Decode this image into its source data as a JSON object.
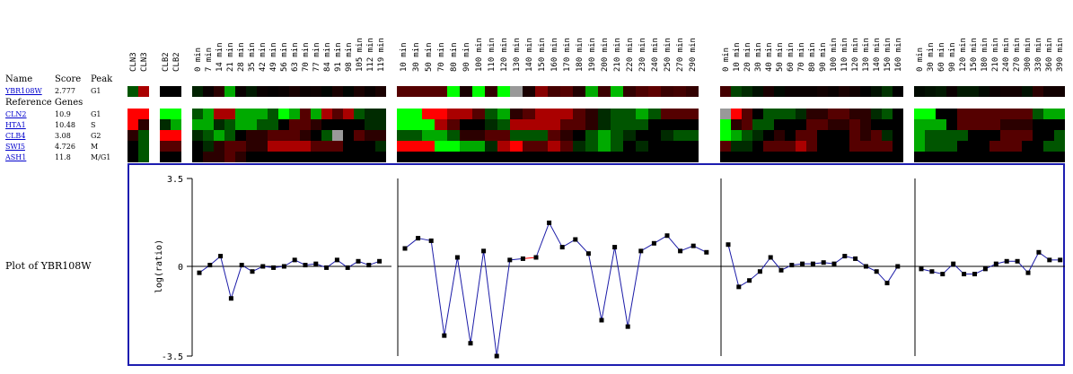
{
  "header": {
    "name": "Name",
    "score": "Score",
    "peak": "Peak",
    "reference_genes": "Reference Genes"
  },
  "query_gene": {
    "name": "YBR108W",
    "score": "2.777",
    "peak": "G1"
  },
  "reference_genes": [
    {
      "name": "CLN2",
      "score": "10.9",
      "peak": "G1"
    },
    {
      "name": "HTA1",
      "score": "10.48",
      "peak": "S"
    },
    {
      "name": "CLB4",
      "score": "3.08",
      "peak": "G2"
    },
    {
      "name": "SWI5",
      "score": "4.726",
      "peak": "M"
    },
    {
      "name": "ASH1",
      "score": "11.8",
      "peak": "M/G1"
    }
  ],
  "plot_title": "Plot of YBR108W",
  "colors": {
    "up": "#ff0000",
    "down": "#00ff00",
    "mid": "#000000",
    "missing": "#999999",
    "frame": "#1d1db0",
    "line": "#1c1ca8"
  },
  "experiments": [
    {
      "group": "cln",
      "columns": [
        "CLN3",
        "CLN3"
      ]
    },
    {
      "group": "clb",
      "columns": [
        "CLB2",
        "CLB2"
      ]
    },
    {
      "group": "alpha",
      "columns": [
        "0 min",
        "7 min",
        "14 min",
        "21 min",
        "28 min",
        "35 min",
        "42 min",
        "49 min",
        "56 min",
        "63 min",
        "70 min",
        "77 min",
        "84 min",
        "91 min",
        "98 min",
        "105 min",
        "112 min",
        "119 min"
      ]
    },
    {
      "group": "cdc15",
      "columns": [
        "10 min",
        "30 min",
        "50 min",
        "70 min",
        "80 min",
        "90 min",
        "100 min",
        "110 min",
        "120 min",
        "130 min",
        "140 min",
        "150 min",
        "160 min",
        "170 min",
        "180 min",
        "190 min",
        "200 min",
        "210 min",
        "220 min",
        "230 min",
        "240 min",
        "250 min",
        "270 min",
        "290 min"
      ]
    },
    {
      "group": "cdc28",
      "columns": [
        "0 min",
        "10 min",
        "20 min",
        "30 min",
        "40 min",
        "50 min",
        "60 min",
        "70 min",
        "80 min",
        "90 min",
        "100 min",
        "110 min",
        "120 min",
        "130 min",
        "140 min",
        "150 min",
        "160 min"
      ]
    },
    {
      "group": "elutr",
      "columns": [
        "0 min",
        "30 min",
        "60 min",
        "90 min",
        "120 min",
        "150 min",
        "180 min",
        "210 min",
        "240 min",
        "270 min",
        "300 min",
        "330 min",
        "360 min",
        "390 min"
      ]
    }
  ],
  "heatmap_rows": {
    "YBR108W": {
      "cln": [
        -1,
        2
      ],
      "clb": [
        0,
        0
      ],
      "alpha": [
        -0.4,
        0.1,
        0.5,
        -2,
        0.1,
        -0.3,
        0.1,
        0.05,
        0.1,
        0.3,
        0.1,
        0.15,
        -0.05,
        0.3,
        -0.05,
        0.3,
        0.1,
        0.3
      ],
      "cdc15": [
        1,
        1,
        1,
        1,
        -3,
        0.3,
        -3,
        0.6,
        -3.4,
        "NA",
        0.3,
        1.6,
        0.8,
        1,
        0.4,
        -2,
        0.7,
        -2.2,
        0.6,
        0.9,
        1.1,
        0.7,
        0.8,
        0.6
      ],
      "cdc28": [
        0.8,
        -0.8,
        -0.5,
        -0.2,
        0.3,
        -0.1,
        0.1,
        0.1,
        0.1,
        0.2,
        0.1,
        0.3,
        0.2,
        0,
        -0.2,
        -0.6,
        0
      ],
      "elutr": [
        -0.1,
        -0.2,
        -0.3,
        0.1,
        -0.3,
        -0.3,
        -0.1,
        0.1,
        0.2,
        0.2,
        -0.2,
        0.5,
        0.2,
        0.2
      ]
    },
    "CLN2": {
      "cln": [
        3,
        3
      ],
      "clb": [
        -3,
        -3
      ],
      "alpha": [
        -1,
        -2,
        2,
        2,
        -2,
        -2,
        -2,
        -1,
        -3,
        -2,
        1,
        -2,
        2,
        1,
        2,
        -1,
        -0.5,
        -0.5
      ],
      "cdc15": [
        -3,
        -3,
        3,
        3,
        2,
        2,
        1,
        -1,
        -2,
        0.5,
        1,
        2,
        2,
        2,
        1,
        0.5,
        -0.5,
        -1,
        -1,
        -2,
        -1,
        1,
        1,
        1
      ],
      "cdc28": [
        "NA",
        3,
        1,
        0,
        -1,
        -1,
        -1,
        -0.5,
        0.5,
        0.5,
        1,
        1,
        0.5,
        0.5,
        -0.5,
        -1,
        0
      ],
      "elutr": [
        -3,
        -3,
        0,
        0,
        1,
        1,
        1,
        1,
        1,
        1,
        1,
        -1,
        -2,
        -2
      ]
    },
    "HTA1": {
      "cln": [
        3,
        0.5
      ],
      "clb": [
        -0.5,
        -2
      ],
      "alpha": [
        -2,
        -2,
        -0.5,
        -1,
        -2,
        -2,
        -1,
        -1,
        0,
        1,
        1,
        0.5,
        0,
        0,
        0,
        0,
        -0.5,
        -0.5
      ],
      "cdc15": [
        -3,
        -3,
        -3,
        2,
        1,
        0,
        0,
        -0.5,
        -1,
        2,
        2,
        2,
        2,
        1,
        1,
        0.5,
        -0.5,
        -1,
        -1,
        -1,
        0,
        0,
        0,
        0
      ],
      "cdc28": [
        -3,
        0.5,
        1,
        -1,
        -1,
        0,
        0,
        0,
        1,
        1,
        0.5,
        0.5,
        1,
        0.5,
        0,
        0,
        0
      ],
      "elutr": [
        -2,
        -2,
        -2,
        0,
        1,
        1,
        1,
        1,
        0.5,
        0.5,
        0.5,
        0,
        0,
        0
      ]
    },
    "CLB4": {
      "cln": [
        0.5,
        -1
      ],
      "clb": [
        3,
        3
      ],
      "alpha": [
        -0.5,
        -1,
        -2,
        -1,
        0,
        0.5,
        0.5,
        1,
        1,
        1,
        0.5,
        0,
        -1,
        "NA",
        0,
        1,
        0.5,
        0.5
      ],
      "cdc15": [
        -1,
        -1,
        -2,
        -2,
        -1,
        0.5,
        0.5,
        1,
        1,
        -1,
        -1,
        -1,
        1,
        0.5,
        0,
        -1,
        -2,
        -1,
        -0.5,
        0,
        0,
        -0.5,
        -1,
        -1
      ],
      "cdc28": [
        -3,
        -2,
        -1,
        -0.5,
        0,
        0.5,
        0,
        1,
        1,
        0,
        0,
        0,
        1,
        0.5,
        1,
        -0.5,
        0
      ],
      "elutr": [
        -2,
        -1,
        -1,
        -1,
        -1,
        0,
        0,
        0,
        1,
        1,
        1,
        0,
        0,
        -1
      ]
    },
    "SWI5": {
      "cln": [
        0,
        -1
      ],
      "clb": [
        1,
        1
      ],
      "alpha": [
        0,
        -0.5,
        0.5,
        1,
        1,
        0.5,
        0.5,
        2,
        2,
        2,
        2,
        1,
        1,
        1,
        0,
        0,
        0,
        -0.5
      ],
      "cdc15": [
        3,
        3,
        3,
        -3,
        -3,
        -2,
        -2,
        -0.5,
        2,
        3,
        1,
        1,
        2,
        1,
        -0.5,
        -1,
        -2,
        -1,
        0,
        -0.5,
        0,
        0,
        0,
        0
      ],
      "cdc28": [
        1,
        -0.5,
        -0.5,
        0,
        1,
        1,
        1,
        2,
        1,
        0,
        0,
        0,
        1,
        1,
        1,
        1,
        0
      ],
      "elutr": [
        -2,
        -1,
        -1,
        -1,
        0,
        0,
        0,
        1,
        1,
        1,
        0,
        0,
        -1,
        -1
      ]
    },
    "ASH1": {
      "cln": [
        0,
        -1
      ],
      "clb": [
        0,
        0
      ],
      "alpha": [
        0,
        0.5,
        0.5,
        1,
        0.5,
        0,
        0,
        0,
        0,
        0,
        0,
        0,
        0,
        0,
        0,
        0,
        0,
        0
      ],
      "cdc15": [
        0,
        0,
        0,
        0,
        0,
        0,
        0,
        0,
        0,
        0,
        0,
        0,
        0,
        0,
        0,
        0,
        0,
        0,
        0,
        0,
        0,
        0,
        0,
        0
      ],
      "cdc28": [
        0,
        0,
        0,
        0,
        0,
        0,
        0,
        0,
        0,
        0,
        0,
        0,
        0,
        0,
        0,
        0,
        0
      ],
      "elutr": [
        0,
        0,
        0,
        0,
        0,
        0,
        0,
        0,
        0,
        0,
        0,
        0,
        0,
        0
      ]
    }
  },
  "chart_data": {
    "type": "line",
    "ylabel": "log(ratio)",
    "ylim": [
      -3.5,
      3.5
    ],
    "yticks": [
      "3.5",
      "0",
      "-3.5"
    ],
    "grid": false,
    "panels": [
      {
        "group": "alpha",
        "values": [
          -0.25,
          0.05,
          0.4,
          -1.25,
          0.05,
          -0.2,
          0.0,
          -0.05,
          0.0,
          0.25,
          0.05,
          0.1,
          -0.05,
          0.25,
          -0.05,
          0.2,
          0.05,
          0.2
        ]
      },
      {
        "group": "cdc15",
        "values": [
          0.7,
          1.1,
          1.0,
          -2.7,
          0.35,
          -3.0,
          0.6,
          -3.5,
          0.25,
          0.3,
          0.35,
          1.7,
          0.75,
          1.05,
          0.5,
          -2.1,
          0.75,
          -2.35,
          0.6,
          0.9,
          1.2,
          0.6,
          0.8,
          0.55
        ],
        "gap_segment": [
          9,
          10
        ]
      },
      {
        "group": "cdc28",
        "values": [
          0.85,
          -0.8,
          -0.55,
          -0.2,
          0.35,
          -0.15,
          0.05,
          0.1,
          0.1,
          0.15,
          0.1,
          0.4,
          0.3,
          0.0,
          -0.2,
          -0.65,
          0.0
        ]
      },
      {
        "group": "elutr",
        "values": [
          -0.1,
          -0.2,
          -0.3,
          0.1,
          -0.3,
          -0.3,
          -0.1,
          0.1,
          0.2,
          0.2,
          -0.25,
          0.55,
          0.25,
          0.25
        ]
      }
    ]
  }
}
